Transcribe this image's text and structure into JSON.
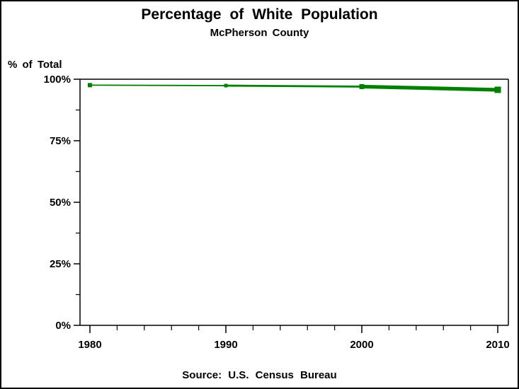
{
  "chart_data": {
    "type": "line",
    "title": "Percentage of White Population",
    "subtitle": "McPherson County",
    "ylabel": "% of Total",
    "footnote": "Source: U.S. Census Bureau",
    "x": [
      1980,
      1990,
      2000,
      2010
    ],
    "x_tick_labels": [
      "1980",
      "1990",
      "2000",
      "2010"
    ],
    "x_minor_tick_step_years": 2,
    "series": [
      {
        "name": "white-population-percent",
        "color": "#008000",
        "values": [
          97.6,
          97.4,
          97.0,
          95.7
        ]
      }
    ],
    "ylim": [
      0,
      100
    ],
    "y_tick_values": [
      0,
      25,
      50,
      75,
      100
    ],
    "y_tick_labels": [
      "0%",
      "25%",
      "50%",
      "75%",
      "100%"
    ],
    "grid": false,
    "legend": "none",
    "axis_color": "#000000",
    "background_color": "#ffffff"
  }
}
